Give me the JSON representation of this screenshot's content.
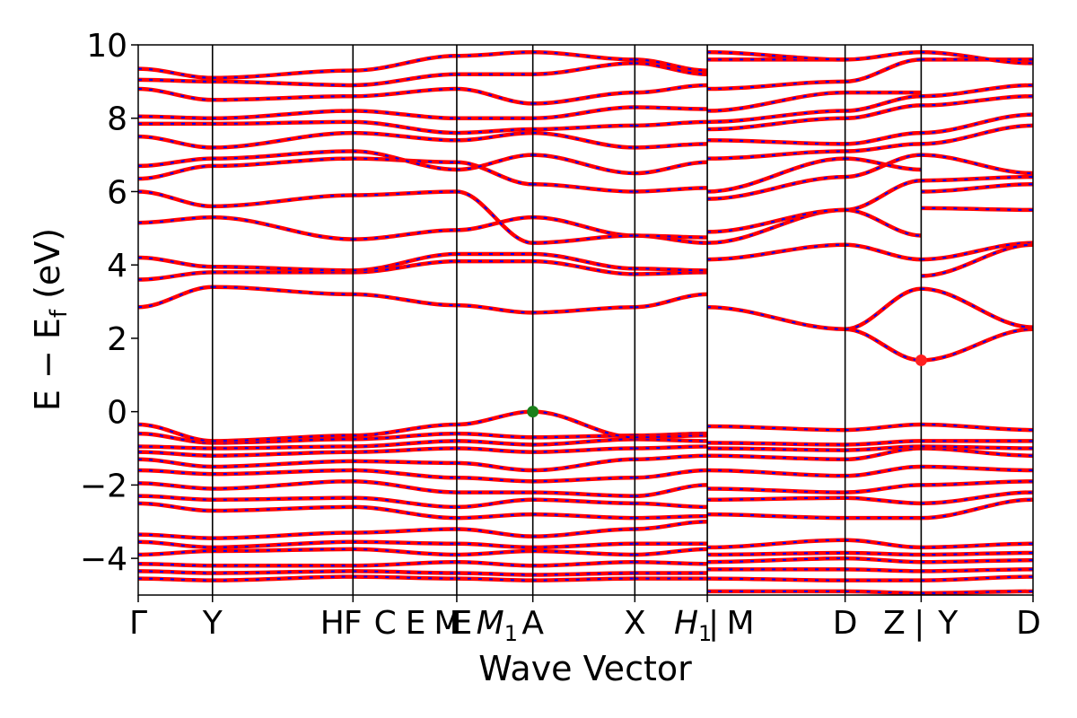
{
  "chart_data": {
    "type": "line",
    "xlabel": "Wave Vector",
    "ylabel": "E − E",
    "ylabel_sub": "f",
    "ylabel_unit": " (eV)",
    "ylim": [
      -5,
      10
    ],
    "xlim": [
      0,
      1
    ],
    "yticks": [
      -4,
      -2,
      0,
      2,
      4,
      6,
      8,
      10
    ],
    "ytick_labels": [
      "−4",
      "−2",
      "0",
      "2",
      "4",
      "6",
      "8",
      "10"
    ],
    "kpath_labels": [
      {
        "text": "Γ",
        "x": 0.0
      },
      {
        "text": "Y",
        "x": 0.083
      },
      {
        "text": "H",
        "x": 0.217
      },
      {
        "text": "F",
        "x": 0.24
      },
      {
        "text": "C",
        "x": 0.276
      },
      {
        "text": "E",
        "x": 0.31
      },
      {
        "text": "M",
        "x": 0.346
      },
      {
        "text": "F",
        "x": 0.358
      },
      {
        "text": "E",
        "x": 0.362
      },
      {
        "text": "M",
        "x": 0.401,
        "sub": "1"
      },
      {
        "text": "A",
        "x": 0.441
      },
      {
        "text": "X",
        "x": 0.555
      },
      {
        "text": "H",
        "x": 0.62,
        "sub": "1"
      },
      {
        "text": "|",
        "x": 0.643
      },
      {
        "text": "M",
        "x": 0.673
      },
      {
        "text": "D",
        "x": 0.79
      },
      {
        "text": "Z",
        "x": 0.845
      },
      {
        "text": "|",
        "x": 0.873
      },
      {
        "text": "Y",
        "x": 0.905
      },
      {
        "text": "D",
        "x": 0.995
      }
    ],
    "kpath_lines": [
      0.083,
      0.24,
      0.356,
      0.441,
      0.555,
      0.636,
      0.79,
      0.875
    ],
    "discontinuities": [
      0.636,
      0.875
    ],
    "grid": false,
    "legend": false,
    "series_colors": {
      "band_primary": "#ff0000",
      "band_overlay": "#0000ff"
    },
    "markers": [
      {
        "label": "VBM",
        "x": 0.441,
        "y": 0.0,
        "color": "#1a7f1a"
      },
      {
        "label": "CBM",
        "x": 0.875,
        "y": 1.4,
        "color": "#ff2020"
      }
    ],
    "segments": [
      {
        "x0": 0.0,
        "x1": 0.083,
        "bands": [
          [
            -4.55,
            -4.6
          ],
          [
            -4.35,
            -4.4
          ],
          [
            -4.15,
            -4.2
          ],
          [
            -3.9,
            -3.8
          ],
          [
            -3.55,
            -3.7
          ],
          [
            -3.35,
            -3.45
          ],
          [
            -2.5,
            -2.7
          ],
          [
            -2.3,
            -2.4
          ],
          [
            -1.95,
            -2.1
          ],
          [
            -1.6,
            -1.7
          ],
          [
            -1.3,
            -1.5
          ],
          [
            -1.1,
            -1.2
          ],
          [
            -0.95,
            -1.0
          ],
          [
            -0.6,
            -0.85
          ],
          [
            -0.35,
            -0.8
          ],
          [
            2.85,
            3.4
          ],
          [
            3.6,
            3.8
          ],
          [
            4.2,
            3.95
          ],
          [
            5.15,
            5.3
          ],
          [
            6.0,
            5.6
          ],
          [
            6.35,
            6.7
          ],
          [
            6.7,
            6.9
          ],
          [
            7.5,
            7.2
          ],
          [
            7.85,
            7.85
          ],
          [
            8.05,
            8.0
          ],
          [
            8.8,
            8.5
          ],
          [
            9.05,
            9.0
          ],
          [
            9.35,
            9.1
          ]
        ]
      },
      {
        "x0": 0.083,
        "x1": 0.24,
        "bands": [
          [
            -4.6,
            -4.5
          ],
          [
            -4.4,
            -4.35
          ],
          [
            -4.2,
            -4.2
          ],
          [
            -3.8,
            -3.75
          ],
          [
            -3.7,
            -3.55
          ],
          [
            -3.45,
            -3.3
          ],
          [
            -2.7,
            -2.6
          ],
          [
            -2.4,
            -2.35
          ],
          [
            -2.1,
            -1.9
          ],
          [
            -1.7,
            -1.6
          ],
          [
            -1.5,
            -1.35
          ],
          [
            -1.2,
            -1.1
          ],
          [
            -1.0,
            -0.95
          ],
          [
            -0.85,
            -0.75
          ],
          [
            -0.8,
            -0.65
          ],
          [
            3.4,
            3.2
          ],
          [
            3.8,
            3.8
          ],
          [
            3.95,
            3.85
          ],
          [
            5.3,
            4.7
          ],
          [
            5.6,
            5.9
          ],
          [
            6.7,
            6.9
          ],
          [
            6.9,
            7.1
          ],
          [
            7.2,
            7.6
          ],
          [
            7.85,
            7.9
          ],
          [
            8.0,
            8.2
          ],
          [
            8.5,
            8.6
          ],
          [
            9.0,
            8.9
          ],
          [
            9.1,
            9.3
          ]
        ]
      },
      {
        "x0": 0.24,
        "x1": 0.356,
        "bands": [
          [
            -4.5,
            -4.55
          ],
          [
            -4.35,
            -4.4
          ],
          [
            -4.2,
            -4.1
          ],
          [
            -3.75,
            -3.9
          ],
          [
            -3.55,
            -3.6
          ],
          [
            -3.3,
            -3.2
          ],
          [
            -2.6,
            -2.9
          ],
          [
            -2.35,
            -2.6
          ],
          [
            -1.9,
            -2.2
          ],
          [
            -1.6,
            -1.8
          ],
          [
            -1.35,
            -1.4
          ],
          [
            -1.1,
            -1.0
          ],
          [
            -0.95,
            -0.8
          ],
          [
            -0.75,
            -0.6
          ],
          [
            -0.65,
            -0.35
          ],
          [
            3.2,
            2.9
          ],
          [
            3.8,
            4.1
          ],
          [
            3.85,
            4.3
          ],
          [
            4.7,
            4.95
          ],
          [
            5.9,
            6.0
          ],
          [
            6.9,
            6.8
          ],
          [
            7.1,
            6.6
          ],
          [
            7.6,
            7.4
          ],
          [
            7.9,
            7.6
          ],
          [
            8.2,
            8.0
          ],
          [
            8.6,
            8.8
          ],
          [
            8.9,
            9.2
          ],
          [
            9.3,
            9.7
          ]
        ]
      },
      {
        "x0": 0.356,
        "x1": 0.441,
        "bands": [
          [
            -4.55,
            -4.6
          ],
          [
            -4.4,
            -4.45
          ],
          [
            -4.1,
            -4.2
          ],
          [
            -3.9,
            -3.8
          ],
          [
            -3.6,
            -3.7
          ],
          [
            -3.2,
            -3.4
          ],
          [
            -2.9,
            -2.8
          ],
          [
            -2.6,
            -2.4
          ],
          [
            -2.2,
            -2.2
          ],
          [
            -1.8,
            -1.9
          ],
          [
            -1.4,
            -1.6
          ],
          [
            -1.0,
            -1.1
          ],
          [
            -0.8,
            -0.9
          ],
          [
            -0.6,
            -0.7
          ],
          [
            -0.35,
            0.0
          ],
          [
            2.9,
            2.7
          ],
          [
            4.1,
            4.1
          ],
          [
            4.3,
            4.3
          ],
          [
            4.95,
            5.3
          ],
          [
            6.0,
            4.6
          ],
          [
            6.8,
            6.2
          ],
          [
            6.6,
            7.0
          ],
          [
            7.4,
            7.6
          ],
          [
            7.6,
            7.7
          ],
          [
            8.0,
            8.0
          ],
          [
            8.8,
            8.4
          ],
          [
            9.2,
            9.2
          ],
          [
            9.7,
            9.8
          ]
        ]
      },
      {
        "x0": 0.441,
        "x1": 0.555,
        "bands": [
          [
            -4.6,
            -4.55
          ],
          [
            -4.45,
            -4.4
          ],
          [
            -4.2,
            -4.1
          ],
          [
            -3.8,
            -3.9
          ],
          [
            -3.7,
            -3.6
          ],
          [
            -3.4,
            -3.2
          ],
          [
            -2.8,
            -2.9
          ],
          [
            -2.4,
            -2.5
          ],
          [
            -2.2,
            -2.3
          ],
          [
            -1.9,
            -1.8
          ],
          [
            -1.6,
            -1.3
          ],
          [
            -1.1,
            -1.0
          ],
          [
            -0.9,
            -0.75
          ],
          [
            -0.7,
            -0.65
          ],
          [
            0.0,
            -0.7
          ],
          [
            2.7,
            2.85
          ],
          [
            4.1,
            3.75
          ],
          [
            4.3,
            3.9
          ],
          [
            5.3,
            4.8
          ],
          [
            4.6,
            4.8
          ],
          [
            6.2,
            6.0
          ],
          [
            7.0,
            6.5
          ],
          [
            7.6,
            7.2
          ],
          [
            7.7,
            7.8
          ],
          [
            8.0,
            8.3
          ],
          [
            8.4,
            8.7
          ],
          [
            9.2,
            9.5
          ],
          [
            9.8,
            9.6
          ]
        ]
      },
      {
        "x0": 0.555,
        "x1": 0.636,
        "bands": [
          [
            -4.55,
            -4.55
          ],
          [
            -4.4,
            -4.4
          ],
          [
            -4.1,
            -4.15
          ],
          [
            -3.9,
            -3.75
          ],
          [
            -3.6,
            -3.6
          ],
          [
            -3.2,
            -3.0
          ],
          [
            -2.9,
            -2.85
          ],
          [
            -2.5,
            -2.6
          ],
          [
            -2.3,
            -2.0
          ],
          [
            -1.8,
            -1.6
          ],
          [
            -1.3,
            -1.2
          ],
          [
            -1.0,
            -0.95
          ],
          [
            -0.75,
            -0.8
          ],
          [
            -0.65,
            -0.6
          ],
          [
            -0.7,
            -0.65
          ],
          [
            2.85,
            3.2
          ],
          [
            3.75,
            3.8
          ],
          [
            3.9,
            3.85
          ],
          [
            4.8,
            4.6
          ],
          [
            4.8,
            4.75
          ],
          [
            6.0,
            6.1
          ],
          [
            6.5,
            6.8
          ],
          [
            7.2,
            7.3
          ],
          [
            7.8,
            7.9
          ],
          [
            8.3,
            8.25
          ],
          [
            8.7,
            8.9
          ],
          [
            9.5,
            9.2
          ],
          [
            9.6,
            9.3
          ]
        ]
      },
      {
        "x0": 0.636,
        "x1": 0.79,
        "bands": [
          [
            -4.9,
            -4.9
          ],
          [
            -4.55,
            -4.6
          ],
          [
            -4.3,
            -4.3
          ],
          [
            -4.1,
            -4.0
          ],
          [
            -3.9,
            -3.85
          ],
          [
            -3.7,
            -3.5
          ],
          [
            -2.8,
            -2.9
          ],
          [
            -2.4,
            -2.35
          ],
          [
            -2.1,
            -2.2
          ],
          [
            -1.6,
            -1.75
          ],
          [
            -1.2,
            -1.3
          ],
          [
            -1.0,
            -1.05
          ],
          [
            -0.85,
            -0.9
          ],
          [
            -0.4,
            -0.5
          ],
          [
            2.85,
            2.25
          ],
          [
            4.15,
            4.55
          ],
          [
            4.6,
            5.5
          ],
          [
            4.9,
            5.5
          ],
          [
            5.8,
            6.4
          ],
          [
            6.0,
            6.9
          ],
          [
            6.9,
            7.1
          ],
          [
            7.4,
            7.3
          ],
          [
            7.7,
            8.0
          ],
          [
            7.9,
            8.2
          ],
          [
            8.2,
            8.7
          ],
          [
            8.8,
            9.0
          ],
          [
            9.6,
            9.6
          ],
          [
            9.8,
            9.6
          ]
        ]
      },
      {
        "x0": 0.79,
        "x1": 0.875,
        "bands": [
          [
            -4.9,
            -4.95
          ],
          [
            -4.6,
            -4.6
          ],
          [
            -4.3,
            -4.35
          ],
          [
            -4.0,
            -4.1
          ],
          [
            -3.85,
            -3.9
          ],
          [
            -3.5,
            -3.7
          ],
          [
            -2.9,
            -2.9
          ],
          [
            -2.35,
            -2.5
          ],
          [
            -2.2,
            -2.0
          ],
          [
            -1.75,
            -1.5
          ],
          [
            -1.3,
            -1.0
          ],
          [
            -1.05,
            -0.95
          ],
          [
            -0.9,
            -0.8
          ],
          [
            -0.5,
            -0.35
          ],
          [
            2.25,
            1.4
          ],
          [
            2.25,
            3.35
          ],
          [
            4.55,
            4.15
          ],
          [
            5.5,
            4.8
          ],
          [
            5.5,
            6.3
          ],
          [
            6.4,
            7.0
          ],
          [
            6.9,
            6.6
          ],
          [
            7.1,
            7.3
          ],
          [
            7.3,
            7.6
          ],
          [
            8.0,
            8.35
          ],
          [
            8.2,
            8.6
          ],
          [
            8.7,
            8.7
          ],
          [
            9.0,
            9.6
          ],
          [
            9.6,
            9.8
          ]
        ]
      },
      {
        "x0": 0.875,
        "x1": 1.0,
        "bands": [
          [
            -4.95,
            -4.9
          ],
          [
            -4.6,
            -4.5
          ],
          [
            -4.35,
            -4.3
          ],
          [
            -4.1,
            -4.05
          ],
          [
            -3.9,
            -3.85
          ],
          [
            -3.7,
            -3.6
          ],
          [
            -2.9,
            -2.4
          ],
          [
            -2.5,
            -2.2
          ],
          [
            -2.0,
            -1.9
          ],
          [
            -1.5,
            -1.6
          ],
          [
            -1.0,
            -1.2
          ],
          [
            -0.95,
            -1.0
          ],
          [
            -0.8,
            -0.8
          ],
          [
            -0.35,
            -0.5
          ],
          [
            1.4,
            2.25
          ],
          [
            3.35,
            2.3
          ],
          [
            4.15,
            4.6
          ],
          [
            3.7,
            4.55
          ],
          [
            6.3,
            6.4
          ],
          [
            5.55,
            5.5
          ],
          [
            7.0,
            6.5
          ],
          [
            6.0,
            6.2
          ],
          [
            7.3,
            7.8
          ],
          [
            7.6,
            8.1
          ],
          [
            8.35,
            8.6
          ],
          [
            8.6,
            8.9
          ],
          [
            9.6,
            9.6
          ],
          [
            9.8,
            9.5
          ]
        ]
      }
    ]
  }
}
